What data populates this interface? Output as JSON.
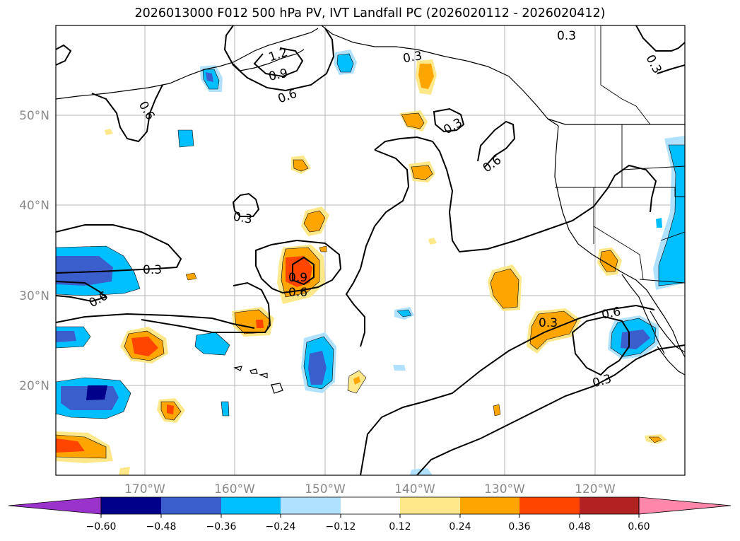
{
  "title": "2026013000 F012 500 hPa PV, IVT Landfall PC (2026020112 - 2026020412)",
  "map": {
    "lon_labels": [
      "170°W",
      "160°W",
      "150°W",
      "140°W",
      "130°W",
      "120°W"
    ],
    "lat_labels": [
      "50°N",
      "40°N",
      "30°N",
      "20°N"
    ],
    "grid": true,
    "contour_labels": [
      "1.2",
      "0.9",
      "0.6",
      "0.3",
      "0.3",
      "0.3",
      "0.3",
      "0.6",
      "0.6",
      "0.3",
      "0.3",
      "0.6",
      "0.9",
      "0.6",
      "0.3",
      "0.6",
      "0.3"
    ]
  },
  "colorbar": {
    "ticks": [
      "−0.60",
      "−0.48",
      "−0.36",
      "−0.24",
      "−0.12",
      "0.12",
      "0.24",
      "0.36",
      "0.48",
      "0.60"
    ],
    "colors": [
      "#9933cc",
      "#00008b",
      "#3a5fcd",
      "#00bfff",
      "#b0e2ff",
      "#ffffff",
      "#ffe88a",
      "#ffa500",
      "#ff4500",
      "#b22222",
      "#ff88aa"
    ],
    "extend": "both"
  }
}
